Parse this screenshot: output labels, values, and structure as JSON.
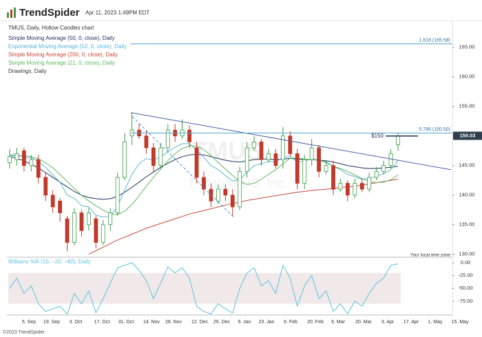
{
  "header": {
    "logo": "TrendSpider",
    "timestamp": "Apr 11, 2023 1:49PM EDT"
  },
  "footer": "©2023 TrendSpider",
  "chart_data": [
    {
      "type": "candlestick",
      "title": "TMUS, Daily, Hollow Candles chart",
      "watermark": "TMUS",
      "watermark_name": "T-Mobile US, Inc.",
      "up_color": "#3d9a46",
      "down_color": "#c0392b",
      "open": [
        145.5,
        146,
        147.5,
        145,
        146,
        143,
        140,
        139,
        136,
        132,
        137,
        135,
        136,
        132,
        135,
        137,
        143,
        150,
        151,
        150,
        148,
        145,
        148,
        151,
        150,
        151,
        148,
        143,
        141,
        139,
        141,
        140,
        138,
        144,
        148,
        149,
        146,
        147,
        146,
        150,
        147,
        142,
        146,
        148,
        144,
        145,
        141,
        142,
        140,
        142,
        141,
        143,
        144,
        145,
        148.5
      ],
      "high": [
        147.8,
        148,
        148,
        146.8,
        146.8,
        143.8,
        140.8,
        139.5,
        136.5,
        137.8,
        137.5,
        137.8,
        136.5,
        135.8,
        137.8,
        143.8,
        150.5,
        154,
        152,
        151,
        148.8,
        148.8,
        152,
        152,
        152.8,
        151.8,
        149,
        144,
        142,
        141.8,
        141.8,
        141,
        144.8,
        149,
        150,
        149.5,
        147.8,
        147.8,
        151.5,
        150.8,
        147.8,
        146.8,
        149.5,
        148.5,
        145.8,
        145.8,
        142.8,
        142.5,
        142.8,
        142.8,
        143.8,
        144.8,
        145.8,
        147.8,
        150.5
      ],
      "low": [
        144.5,
        145,
        144,
        144,
        142,
        139,
        137,
        135.5,
        130.5,
        131.5,
        133,
        134,
        131,
        131.5,
        134,
        136.5,
        142.5,
        148.5,
        149.5,
        147,
        144,
        144.5,
        147.5,
        149,
        149.5,
        148,
        142,
        140,
        138,
        138.5,
        139,
        136.5,
        137.5,
        143,
        147.5,
        145,
        145.5,
        144.5,
        144.5,
        146.5,
        141,
        141,
        145,
        143,
        143.5,
        140,
        140.5,
        139,
        139.5,
        140.5,
        140.5,
        142.5,
        143.5,
        144.5,
        147.5
      ],
      "close": [
        146.5,
        147,
        145,
        146,
        143,
        140,
        138,
        137,
        132,
        137,
        134,
        137,
        132,
        135,
        137,
        143,
        149,
        151,
        150,
        148,
        145,
        148,
        151,
        150,
        151,
        149,
        143,
        141,
        139,
        141,
        140,
        138,
        144,
        148,
        149,
        146,
        147,
        145,
        150,
        147,
        142,
        146,
        148,
        144,
        145,
        141,
        142,
        140,
        142,
        141,
        143,
        144,
        145,
        147,
        150.03
      ],
      "series": [
        {
          "name": "Simple Moving Average (50, 0, close), Daily",
          "color": "#1f2f5c",
          "values": [
            146.5,
            146.2,
            145.8,
            145.2,
            144.6,
            143.8,
            143,
            142.2,
            141.4,
            140.6,
            140,
            139.6,
            139.4,
            139.3,
            139.4,
            139.8,
            140.5,
            141.3,
            142.2,
            143.1,
            143.9,
            144.7,
            145.4,
            146,
            146.5,
            146.8,
            146.9,
            146.8,
            146.5,
            146.2,
            145.9,
            145.7,
            145.6,
            145.8,
            146,
            146.1,
            146.1,
            146,
            146.1,
            146.2,
            146.1,
            146,
            146,
            145.9,
            145.8,
            145.6,
            145.3,
            145,
            144.8,
            144.6,
            144.5,
            144.5,
            144.6,
            144.7,
            144.9
          ]
        },
        {
          "name": "Exponential Moving Average (10, 0, close), Daily",
          "color": "#5ab4d6",
          "values": [
            146.6,
            146.7,
            146.4,
            146.3,
            145.7,
            144.7,
            143.4,
            142.2,
            140,
            139.5,
            138.2,
            138,
            136.6,
            136.3,
            136.4,
            138.1,
            140.9,
            143.5,
            145.3,
            146.2,
            145.9,
            146.5,
            147.3,
            148.1,
            148.7,
            148.7,
            147.6,
            146.4,
            145,
            144.3,
            143.3,
            142.4,
            142.6,
            143.9,
            145,
            145.3,
            145.7,
            145.6,
            146.4,
            146.5,
            145.6,
            145.7,
            146.3,
            145.8,
            145.7,
            144.8,
            144.3,
            143.5,
            143.1,
            142.7,
            142.8,
            143.2,
            143.6,
            144.3,
            145.8
          ]
        },
        {
          "name": "Simple Moving Average (200, 0, close), Daily",
          "color": "#c9453a",
          "values": [
            null,
            null,
            null,
            null,
            null,
            null,
            null,
            null,
            null,
            null,
            null,
            130,
            130.6,
            131.2,
            131.8,
            132.4,
            132.9,
            133.4,
            133.9,
            134.4,
            134.8,
            135.2,
            135.6,
            136,
            136.4,
            136.8,
            137.1,
            137.4,
            137.7,
            138,
            138.3,
            138.6,
            138.8,
            139.1,
            139.3,
            139.5,
            139.7,
            139.9,
            140.1,
            140.3,
            140.5,
            140.6,
            140.8,
            140.9,
            141,
            141.1,
            141.3,
            141.4,
            141.5,
            141.7,
            141.9,
            142.1,
            142.3,
            142.5,
            142.7
          ]
        },
        {
          "name": "Simple Moving Average (21, 0, close), Daily",
          "color": "#5cb85c",
          "values": [
            146.8,
            146.8,
            146.7,
            146.5,
            146.1,
            145.5,
            144.6,
            143.5,
            142.3,
            141.1,
            140,
            139,
            138.2,
            137.5,
            136.8,
            136.7,
            137.3,
            138.4,
            139.9,
            141.5,
            143,
            144.4,
            145.8,
            147,
            147.9,
            148.3,
            148.3,
            147.7,
            146.7,
            145.5,
            144.4,
            143.3,
            142.3,
            141.8,
            142,
            142.7,
            143.5,
            144.3,
            145.3,
            146.2,
            146.3,
            146.1,
            146,
            145.9,
            145.5,
            144.9,
            144.5,
            144,
            143.4,
            142.8,
            142.3,
            142.1,
            142.2,
            142.6,
            143.4
          ]
        }
      ],
      "drawings": {
        "name": "Drawings, Daily",
        "trendline": [
          153.95,
          144.3
        ],
        "dashed_line": [
          153.3,
          136.2
        ],
        "fib": [
          {
            "label": "1.618 (165.58)",
            "value": 165.58
          },
          {
            "label": "0.786 (150.50)",
            "value": 150.5
          }
        ],
        "level": {
          "label": "$150",
          "value": 150
        }
      },
      "last_price": 150.03,
      "ylim": [
        129.5,
        169.5
      ],
      "yticks": [
        {
          "value": 130,
          "label": "130.00"
        },
        {
          "value": 135,
          "label": "135.00"
        },
        {
          "value": 140,
          "label": "140.00"
        },
        {
          "value": 145,
          "label": "145.00"
        },
        {
          "value": 150,
          "label": "150.00"
        },
        {
          "value": 155,
          "label": "155.00"
        },
        {
          "value": 160,
          "label": "160.00"
        },
        {
          "value": 165,
          "label": "165.00"
        }
      ],
      "xticks": [
        "5. Sep",
        "19. Sep",
        "3. Oct",
        "17. Oct",
        "31. Oct",
        "14. Nov",
        "28. Nov",
        "12. Dec",
        "26. Dec",
        "9. Jan",
        "23. Jan",
        "6. Feb",
        "20. Feb",
        "6. Mar",
        "20. Mar",
        "3. Apr",
        "17. Apr",
        "1. May",
        "15. May"
      ],
      "note": "Your local time zone"
    },
    {
      "type": "line",
      "title": "Williams %R (10, −20, −80), Daily",
      "color": "#5bbfe0",
      "values": [
        -50,
        -30,
        -60,
        -45,
        -80,
        -95,
        -90,
        -85,
        -100,
        -60,
        -80,
        -55,
        -98,
        -70,
        -40,
        -10,
        -5,
        0,
        -15,
        -35,
        -70,
        -40,
        -8,
        -20,
        -10,
        -30,
        -85,
        -95,
        -100,
        -80,
        -90,
        -98,
        -50,
        -20,
        -10,
        -45,
        -35,
        -60,
        -5,
        -30,
        -85,
        -45,
        -25,
        -70,
        -55,
        -95,
        -80,
        -100,
        -75,
        -85,
        -60,
        -40,
        -30,
        -5,
        -2
      ],
      "band": [
        -80,
        -20
      ],
      "band_color": "#f1e9e9",
      "ylim": [
        -102,
        8
      ],
      "yticks": [
        {
          "value": 0,
          "label": "0.00"
        },
        {
          "value": -25,
          "label": "-25.00"
        },
        {
          "value": -50,
          "label": "-50.00"
        },
        {
          "value": -75,
          "label": "-75.00"
        }
      ]
    }
  ]
}
